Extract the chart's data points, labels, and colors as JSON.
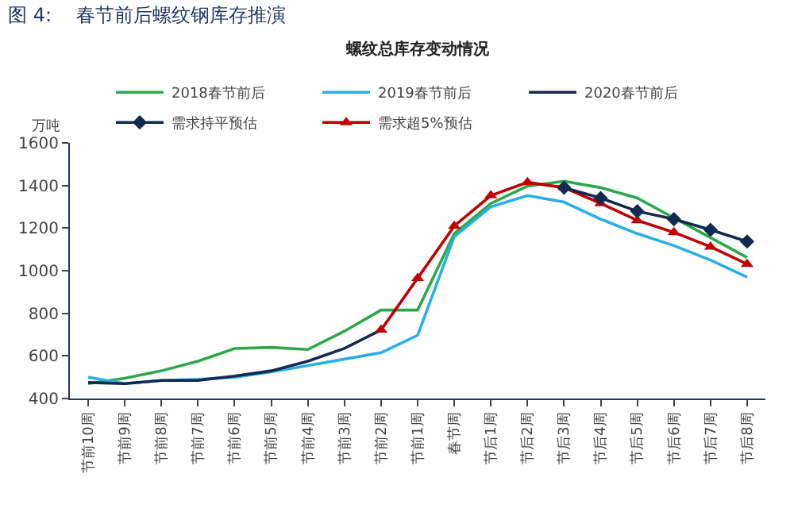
{
  "chart_data": {
    "type": "line",
    "title": "图 4:    春节前后螺纹钢库存推演",
    "subtitle": "螺纹总库存变动情况",
    "ylabel": "万吨",
    "categories": [
      "节前10周",
      "节前9周",
      "节前8周",
      "节前7周",
      "节前6周",
      "节前5周",
      "节前4周",
      "节前3周",
      "节前2周",
      "节前1周",
      "春节周",
      "节后1周",
      "节后2周",
      "节后3周",
      "节后4周",
      "节后5周",
      "节后6周",
      "节后7周",
      "节后8周"
    ],
    "series": [
      {
        "name": "2018春节前后",
        "color": "#2ca84a",
        "marker": "none",
        "values": [
          470,
          495,
          530,
          575,
          635,
          640,
          630,
          716,
          815,
          815,
          1174,
          1316,
          1397,
          1420,
          1390,
          1341,
          1248,
          1155,
          1062
        ]
      },
      {
        "name": "2019春节前后",
        "color": "#29aee6",
        "marker": "none",
        "values": [
          500,
          470,
          485,
          490,
          500,
          525,
          555,
          585,
          615,
          697,
          1160,
          1300,
          1353,
          1322,
          1242,
          1174,
          1118,
          1050,
          970
        ]
      },
      {
        "name": "2020春节前后",
        "color": "#13294f",
        "marker": "none",
        "values": [
          475,
          470,
          485,
          485,
          505,
          530,
          575,
          635,
          722,
          null,
          null,
          null,
          null,
          null,
          null,
          null,
          null,
          null,
          null
        ]
      },
      {
        "name": "需求持平预估",
        "color": "#13294f",
        "marker": "diamond",
        "values": [
          null,
          null,
          null,
          null,
          null,
          null,
          null,
          null,
          null,
          null,
          null,
          null,
          null,
          1390,
          1341,
          1279,
          1242,
          1192,
          1137
        ]
      },
      {
        "name": "需求超5%预估",
        "color": "#c00000",
        "marker": "triangle",
        "values": [
          null,
          null,
          null,
          null,
          null,
          null,
          null,
          null,
          722,
          965,
          1210,
          1353,
          1415,
          1390,
          1316,
          1236,
          1180,
          1112,
          1031
        ]
      }
    ],
    "ylim": [
      400,
      1600
    ],
    "yticks": [
      400,
      600,
      800,
      1000,
      1200,
      1400,
      1600
    ],
    "legend": "top"
  }
}
